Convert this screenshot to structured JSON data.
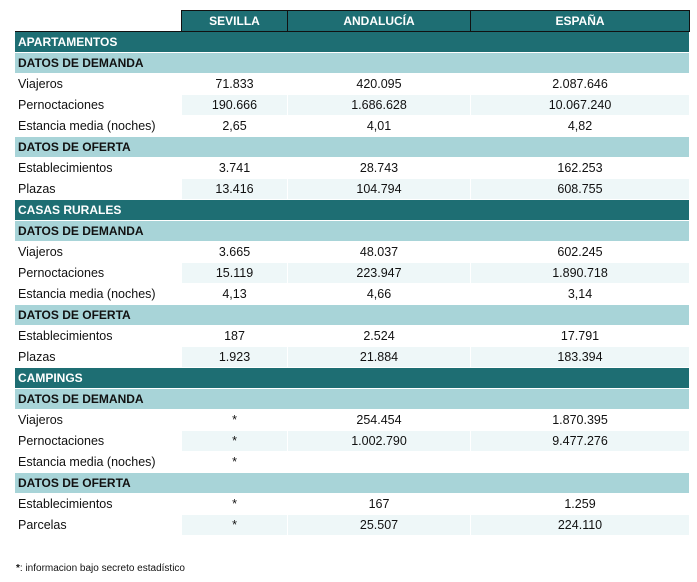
{
  "headers": [
    "SEVILLA",
    "ANDALUCÍA",
    "ESPAÑA"
  ],
  "sections": [
    {
      "title": "APARTAMENTOS",
      "groups": [
        {
          "title": "DATOS DE DEMANDA",
          "rows": [
            {
              "label": "Viajeros",
              "values": [
                "71.833",
                "420.095",
                "2.087.646"
              ]
            },
            {
              "label": "Pernoctaciones",
              "values": [
                "190.666",
                "1.686.628",
                "10.067.240"
              ]
            },
            {
              "label": "Estancia media (noches)",
              "values": [
                "2,65",
                "4,01",
                "4,82"
              ]
            }
          ]
        },
        {
          "title": "DATOS DE OFERTA",
          "rows": [
            {
              "label": "Establecimientos",
              "values": [
                "3.741",
                "28.743",
                "162.253"
              ]
            },
            {
              "label": "Plazas",
              "values": [
                "13.416",
                "104.794",
                "608.755"
              ]
            }
          ]
        }
      ]
    },
    {
      "title": "CASAS RURALES",
      "groups": [
        {
          "title": "DATOS DE DEMANDA",
          "rows": [
            {
              "label": "Viajeros",
              "values": [
                "3.665",
                "48.037",
                "602.245"
              ]
            },
            {
              "label": "Pernoctaciones",
              "values": [
                "15.119",
                "223.947",
                "1.890.718"
              ]
            },
            {
              "label": "Estancia media (noches)",
              "values": [
                "4,13",
                "4,66",
                "3,14"
              ]
            }
          ]
        },
        {
          "title": "DATOS DE OFERTA",
          "rows": [
            {
              "label": "Establecimientos",
              "values": [
                "187",
                "2.524",
                "17.791"
              ]
            },
            {
              "label": "Plazas",
              "values": [
                "1.923",
                "21.884",
                "183.394"
              ]
            }
          ]
        }
      ]
    },
    {
      "title": "CAMPINGS",
      "groups": [
        {
          "title": "DATOS DE DEMANDA",
          "rows": [
            {
              "label": "Viajeros",
              "values": [
                "*",
                "254.454",
                "1.870.395"
              ]
            },
            {
              "label": "Pernoctaciones",
              "values": [
                "*",
                "1.002.790",
                "9.477.276"
              ]
            },
            {
              "label": "Estancia media (noches)",
              "values": [
                "*",
                "",
                ""
              ]
            }
          ]
        },
        {
          "title": "DATOS DE OFERTA",
          "rows": [
            {
              "label": "Establecimientos",
              "values": [
                "*",
                "167",
                "1.259"
              ]
            },
            {
              "label": "Parcelas",
              "values": [
                "*",
                "25.507",
                "224.110"
              ]
            }
          ]
        }
      ]
    }
  ],
  "footnote": {
    "mark": "*",
    "text": ": informacion bajo secreto estadístico"
  }
}
